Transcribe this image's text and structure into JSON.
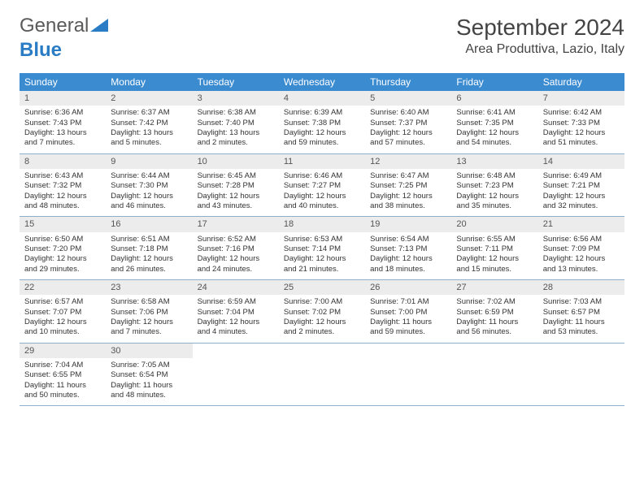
{
  "logo": {
    "part1": "General",
    "part2": "Blue"
  },
  "title": "September 2024",
  "location": "Area Produttiva, Lazio, Italy",
  "colors": {
    "header_bg": "#3b8bd1",
    "header_text": "#ffffff",
    "daynum_bg": "#ececec",
    "week_border": "#8faec9",
    "logo_gray": "#5a5a5a",
    "logo_blue": "#2a7dc4"
  },
  "days_of_week": [
    "Sunday",
    "Monday",
    "Tuesday",
    "Wednesday",
    "Thursday",
    "Friday",
    "Saturday"
  ],
  "weeks": [
    [
      {
        "n": "1",
        "sr": "Sunrise: 6:36 AM",
        "ss": "Sunset: 7:43 PM",
        "dl": "Daylight: 13 hours and 7 minutes."
      },
      {
        "n": "2",
        "sr": "Sunrise: 6:37 AM",
        "ss": "Sunset: 7:42 PM",
        "dl": "Daylight: 13 hours and 5 minutes."
      },
      {
        "n": "3",
        "sr": "Sunrise: 6:38 AM",
        "ss": "Sunset: 7:40 PM",
        "dl": "Daylight: 13 hours and 2 minutes."
      },
      {
        "n": "4",
        "sr": "Sunrise: 6:39 AM",
        "ss": "Sunset: 7:38 PM",
        "dl": "Daylight: 12 hours and 59 minutes."
      },
      {
        "n": "5",
        "sr": "Sunrise: 6:40 AM",
        "ss": "Sunset: 7:37 PM",
        "dl": "Daylight: 12 hours and 57 minutes."
      },
      {
        "n": "6",
        "sr": "Sunrise: 6:41 AM",
        "ss": "Sunset: 7:35 PM",
        "dl": "Daylight: 12 hours and 54 minutes."
      },
      {
        "n": "7",
        "sr": "Sunrise: 6:42 AM",
        "ss": "Sunset: 7:33 PM",
        "dl": "Daylight: 12 hours and 51 minutes."
      }
    ],
    [
      {
        "n": "8",
        "sr": "Sunrise: 6:43 AM",
        "ss": "Sunset: 7:32 PM",
        "dl": "Daylight: 12 hours and 48 minutes."
      },
      {
        "n": "9",
        "sr": "Sunrise: 6:44 AM",
        "ss": "Sunset: 7:30 PM",
        "dl": "Daylight: 12 hours and 46 minutes."
      },
      {
        "n": "10",
        "sr": "Sunrise: 6:45 AM",
        "ss": "Sunset: 7:28 PM",
        "dl": "Daylight: 12 hours and 43 minutes."
      },
      {
        "n": "11",
        "sr": "Sunrise: 6:46 AM",
        "ss": "Sunset: 7:27 PM",
        "dl": "Daylight: 12 hours and 40 minutes."
      },
      {
        "n": "12",
        "sr": "Sunrise: 6:47 AM",
        "ss": "Sunset: 7:25 PM",
        "dl": "Daylight: 12 hours and 38 minutes."
      },
      {
        "n": "13",
        "sr": "Sunrise: 6:48 AM",
        "ss": "Sunset: 7:23 PM",
        "dl": "Daylight: 12 hours and 35 minutes."
      },
      {
        "n": "14",
        "sr": "Sunrise: 6:49 AM",
        "ss": "Sunset: 7:21 PM",
        "dl": "Daylight: 12 hours and 32 minutes."
      }
    ],
    [
      {
        "n": "15",
        "sr": "Sunrise: 6:50 AM",
        "ss": "Sunset: 7:20 PM",
        "dl": "Daylight: 12 hours and 29 minutes."
      },
      {
        "n": "16",
        "sr": "Sunrise: 6:51 AM",
        "ss": "Sunset: 7:18 PM",
        "dl": "Daylight: 12 hours and 26 minutes."
      },
      {
        "n": "17",
        "sr": "Sunrise: 6:52 AM",
        "ss": "Sunset: 7:16 PM",
        "dl": "Daylight: 12 hours and 24 minutes."
      },
      {
        "n": "18",
        "sr": "Sunrise: 6:53 AM",
        "ss": "Sunset: 7:14 PM",
        "dl": "Daylight: 12 hours and 21 minutes."
      },
      {
        "n": "19",
        "sr": "Sunrise: 6:54 AM",
        "ss": "Sunset: 7:13 PM",
        "dl": "Daylight: 12 hours and 18 minutes."
      },
      {
        "n": "20",
        "sr": "Sunrise: 6:55 AM",
        "ss": "Sunset: 7:11 PM",
        "dl": "Daylight: 12 hours and 15 minutes."
      },
      {
        "n": "21",
        "sr": "Sunrise: 6:56 AM",
        "ss": "Sunset: 7:09 PM",
        "dl": "Daylight: 12 hours and 13 minutes."
      }
    ],
    [
      {
        "n": "22",
        "sr": "Sunrise: 6:57 AM",
        "ss": "Sunset: 7:07 PM",
        "dl": "Daylight: 12 hours and 10 minutes."
      },
      {
        "n": "23",
        "sr": "Sunrise: 6:58 AM",
        "ss": "Sunset: 7:06 PM",
        "dl": "Daylight: 12 hours and 7 minutes."
      },
      {
        "n": "24",
        "sr": "Sunrise: 6:59 AM",
        "ss": "Sunset: 7:04 PM",
        "dl": "Daylight: 12 hours and 4 minutes."
      },
      {
        "n": "25",
        "sr": "Sunrise: 7:00 AM",
        "ss": "Sunset: 7:02 PM",
        "dl": "Daylight: 12 hours and 2 minutes."
      },
      {
        "n": "26",
        "sr": "Sunrise: 7:01 AM",
        "ss": "Sunset: 7:00 PM",
        "dl": "Daylight: 11 hours and 59 minutes."
      },
      {
        "n": "27",
        "sr": "Sunrise: 7:02 AM",
        "ss": "Sunset: 6:59 PM",
        "dl": "Daylight: 11 hours and 56 minutes."
      },
      {
        "n": "28",
        "sr": "Sunrise: 7:03 AM",
        "ss": "Sunset: 6:57 PM",
        "dl": "Daylight: 11 hours and 53 minutes."
      }
    ],
    [
      {
        "n": "29",
        "sr": "Sunrise: 7:04 AM",
        "ss": "Sunset: 6:55 PM",
        "dl": "Daylight: 11 hours and 50 minutes."
      },
      {
        "n": "30",
        "sr": "Sunrise: 7:05 AM",
        "ss": "Sunset: 6:54 PM",
        "dl": "Daylight: 11 hours and 48 minutes."
      },
      {
        "n": "",
        "sr": "",
        "ss": "",
        "dl": ""
      },
      {
        "n": "",
        "sr": "",
        "ss": "",
        "dl": ""
      },
      {
        "n": "",
        "sr": "",
        "ss": "",
        "dl": ""
      },
      {
        "n": "",
        "sr": "",
        "ss": "",
        "dl": ""
      },
      {
        "n": "",
        "sr": "",
        "ss": "",
        "dl": ""
      }
    ]
  ]
}
